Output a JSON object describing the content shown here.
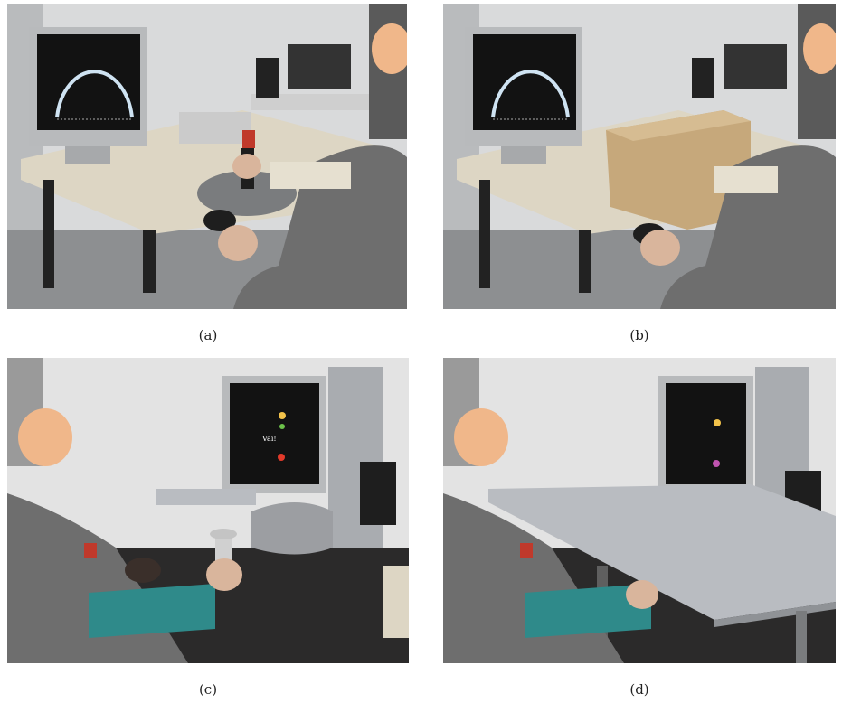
{
  "panels": [
    {
      "id": "a",
      "caption": "(a)"
    },
    {
      "id": "b",
      "caption": "(b)"
    },
    {
      "id": "c",
      "caption": "(c)",
      "screen_text": "Vai!"
    },
    {
      "id": "d",
      "caption": "(d)"
    }
  ],
  "colors": {
    "wall": "#d9dadb",
    "floor": "#8d8f91",
    "desk": "#ddd6c4",
    "monitor_bezel": "#b8babc",
    "screen": "#121212",
    "arc": "#cfe3f2",
    "box": "#c6a87b",
    "sweater": "#6e6e6e",
    "face_mosaic": "#f0b78a",
    "robot_table": "#b9bcc1",
    "target_yellow": "#f2c24a",
    "target_green": "#6cc24a",
    "target_red": "#e23a2a",
    "target_magenta": "#c054b0"
  },
  "icons": [
    "face-mosaic-icon",
    "emergency-stop-icon"
  ]
}
